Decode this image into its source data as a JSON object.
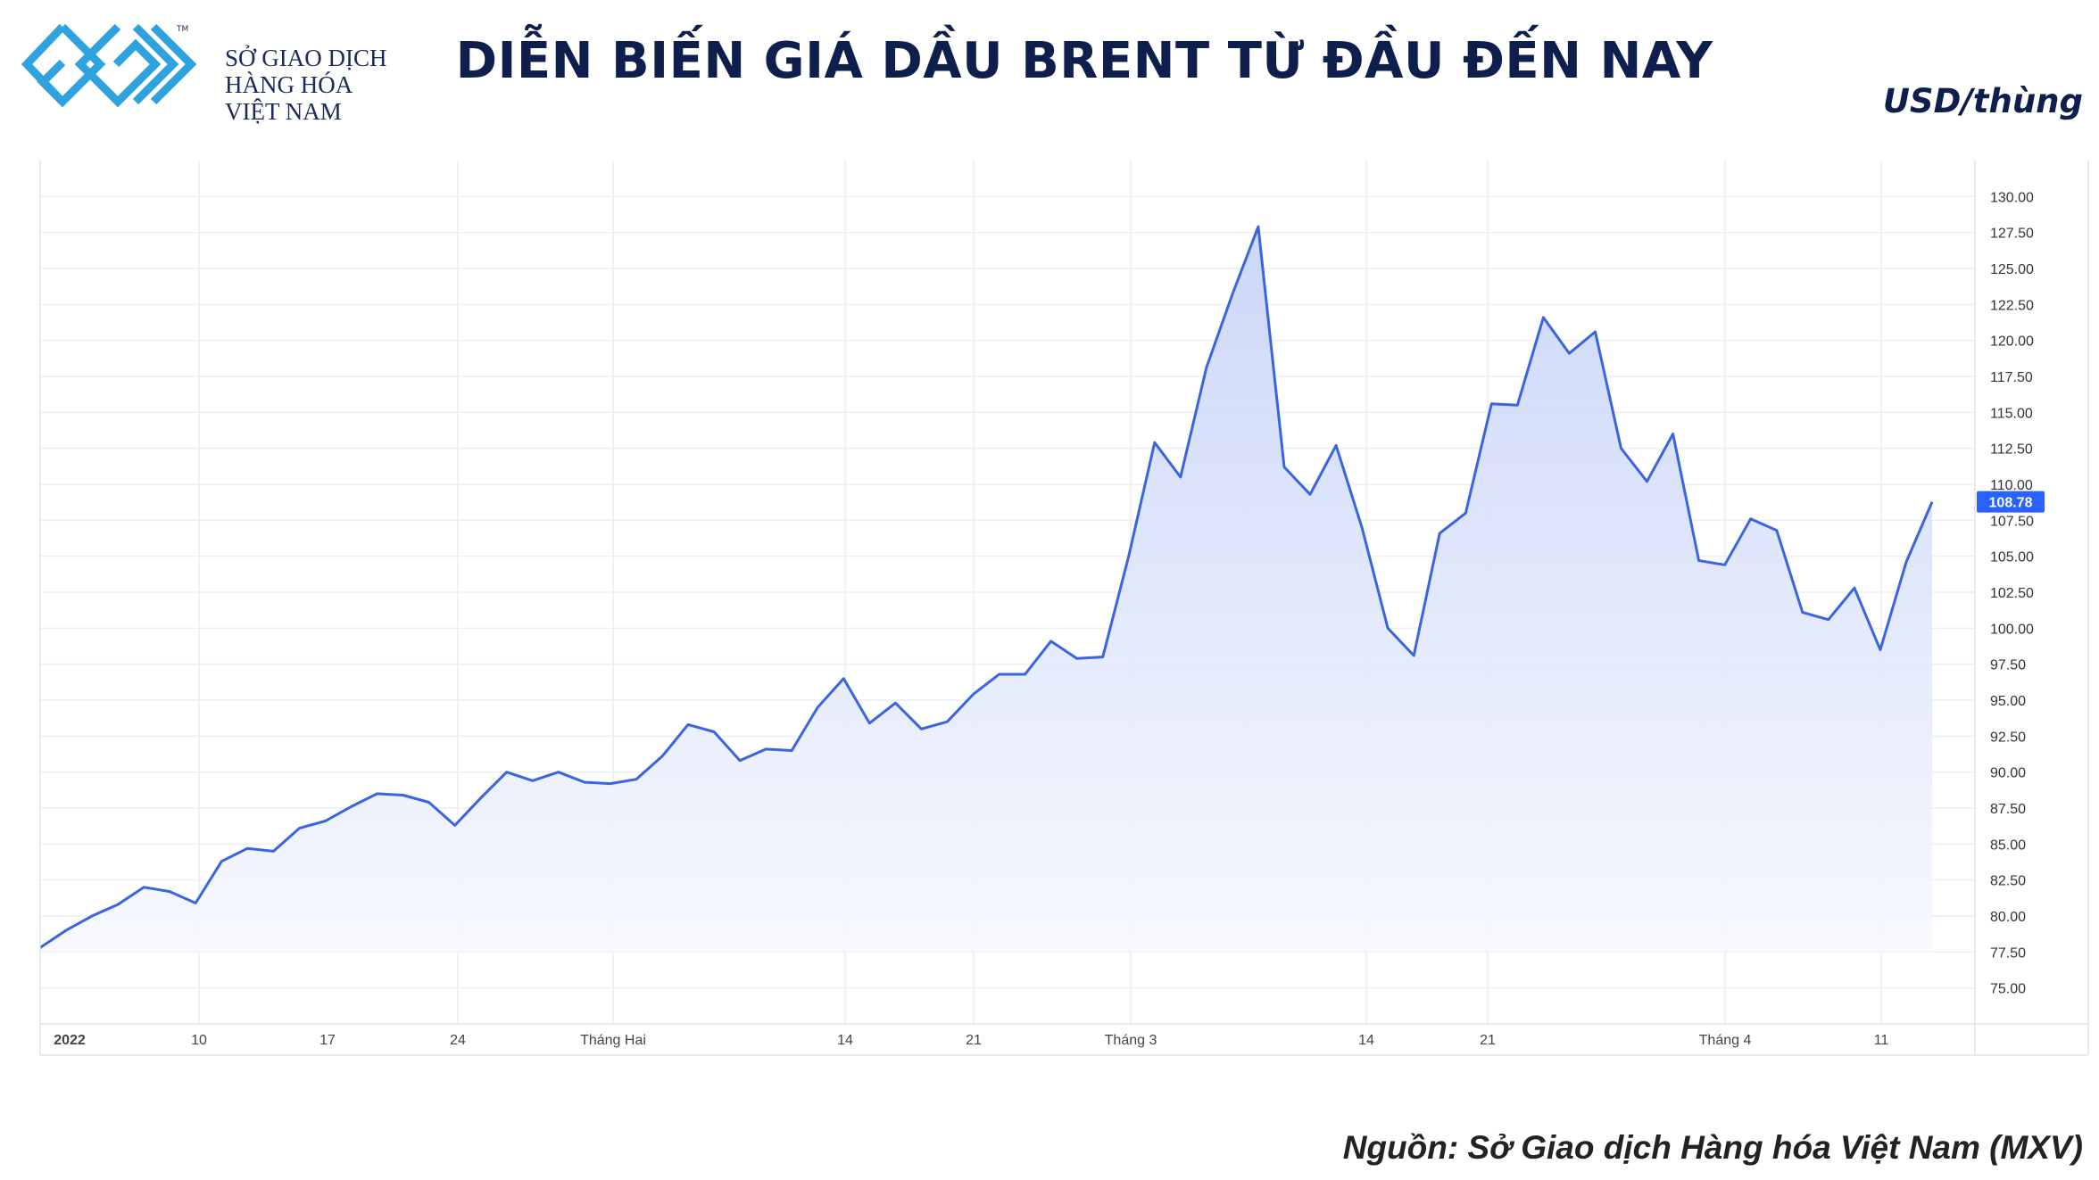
{
  "logo": {
    "lines": [
      "SỞ GIAO DỊCH",
      "HÀNG HÓA",
      "VIỆT NAM"
    ],
    "tm": "TM",
    "colors": {
      "primary": "#2ea3e0",
      "dark": "#1a2a5a"
    }
  },
  "title": "DIỄN BIẾN GIÁ DẦU BRENT TỪ ĐẦU ĐẾN NAY",
  "unit_label": "USD/thùng",
  "source": "Nguồn: Sở Giao dịch Hàng hóa Việt Nam (MXV)",
  "chart_data": {
    "type": "area",
    "x_tick_labels": [
      "2022",
      "10",
      "17",
      "24",
      "Tháng Hai",
      "14",
      "21",
      "Tháng 3",
      "14",
      "21",
      "Tháng 4",
      "11"
    ],
    "y_ticks": [
      "75.00",
      "77.50",
      "80.00",
      "82.50",
      "85.00",
      "87.50",
      "90.00",
      "92.50",
      "95.00",
      "97.50",
      "100.00",
      "102.50",
      "105.00",
      "107.50",
      "110.00",
      "112.50",
      "115.00",
      "117.50",
      "120.00",
      "122.50",
      "125.00",
      "127.50",
      "130.00"
    ],
    "ylim": [
      72.5,
      132.5
    ],
    "last_value_label": "108.78",
    "series": [
      {
        "values": [
          77.8,
          79.0,
          80.0,
          80.8,
          82.0,
          81.7,
          80.9,
          83.8,
          84.7,
          84.5,
          86.1,
          86.6,
          87.6,
          88.5,
          88.4,
          87.9,
          86.3,
          88.2,
          90.0,
          89.4,
          90.0,
          89.3,
          89.2,
          89.5,
          91.1,
          93.3,
          92.8,
          90.8,
          91.6,
          91.5,
          94.5,
          96.5,
          93.4,
          94.8,
          93.0,
          93.5,
          95.4,
          96.8,
          96.8,
          99.1,
          97.9,
          98.0,
          105.0,
          112.9,
          110.5,
          118.1,
          123.2,
          127.9,
          111.2,
          109.3,
          112.7,
          107.0,
          100.0,
          98.1,
          106.6,
          108.0,
          115.6,
          115.5,
          121.6,
          119.1,
          120.6,
          112.5,
          110.2,
          113.5,
          104.7,
          104.4,
          107.6,
          106.8,
          101.1,
          100.6,
          102.8,
          98.5,
          104.6,
          108.78
        ]
      }
    ],
    "colors": {
      "line": "#3a64e0",
      "fill_top": "#c9d5f8",
      "fill_bottom": "#f6f8fe",
      "grid": "#eceff3",
      "label_bg": "#2962ff"
    },
    "grid": true
  }
}
